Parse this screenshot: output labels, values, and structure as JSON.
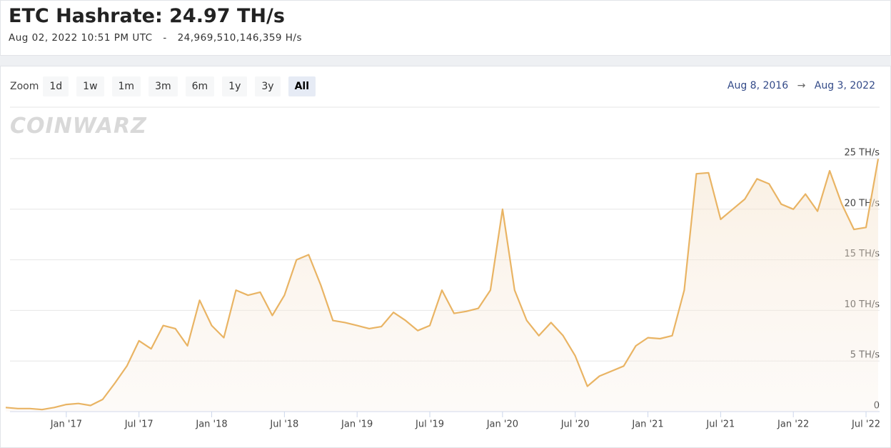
{
  "header": {
    "title": "ETC Hashrate: 24.97 TH/s",
    "timestamp": "Aug 02, 2022 10:51 PM UTC",
    "separator": "-",
    "hashrate": "24,969,510,146,359 H/s"
  },
  "toolbar": {
    "zoom_label": "Zoom",
    "zoom_buttons": [
      "1d",
      "1w",
      "1m",
      "3m",
      "6m",
      "1y",
      "3y",
      "All"
    ],
    "selected": "All",
    "range_start": "Aug 8, 2016",
    "range_arrow": "→",
    "range_end": "Aug 3, 2022"
  },
  "watermark": "COINWARZ",
  "chart_data": {
    "type": "area",
    "color": "#e9b464",
    "x": [
      "2016-08",
      "2016-09",
      "2016-10",
      "2016-11",
      "2016-12",
      "2017-01",
      "2017-02",
      "2017-03",
      "2017-04",
      "2017-05",
      "2017-06",
      "2017-07",
      "2017-08",
      "2017-09",
      "2017-10",
      "2017-11",
      "2017-12",
      "2018-01",
      "2018-02",
      "2018-03",
      "2018-04",
      "2018-05",
      "2018-06",
      "2018-07",
      "2018-08",
      "2018-09",
      "2018-10",
      "2018-11",
      "2018-12",
      "2019-01",
      "2019-02",
      "2019-03",
      "2019-04",
      "2019-05",
      "2019-06",
      "2019-07",
      "2019-08",
      "2019-09",
      "2019-10",
      "2019-11",
      "2019-12",
      "2020-01",
      "2020-02",
      "2020-03",
      "2020-04",
      "2020-05",
      "2020-06",
      "2020-07",
      "2020-08",
      "2020-09",
      "2020-10",
      "2020-11",
      "2020-12",
      "2021-01",
      "2021-02",
      "2021-03",
      "2021-04",
      "2021-05",
      "2021-06",
      "2021-07",
      "2021-08",
      "2021-09",
      "2021-10",
      "2021-11",
      "2021-12",
      "2022-01",
      "2022-02",
      "2022-03",
      "2022-04",
      "2022-05",
      "2022-06",
      "2022-07",
      "2022-08"
    ],
    "values": [
      0.4,
      0.3,
      0.3,
      0.2,
      0.4,
      0.7,
      0.8,
      0.6,
      1.2,
      2.8,
      4.5,
      7.0,
      6.2,
      8.5,
      8.2,
      6.5,
      11.0,
      8.5,
      7.3,
      12.0,
      11.5,
      11.8,
      9.5,
      11.5,
      15.0,
      15.5,
      12.5,
      9.0,
      8.8,
      8.5,
      8.2,
      8.4,
      9.8,
      9.0,
      8.0,
      8.5,
      12.0,
      9.7,
      9.9,
      10.2,
      12.0,
      20.0,
      12.0,
      9.0,
      7.5,
      8.8,
      7.5,
      5.5,
      2.5,
      3.5,
      4.0,
      4.5,
      6.5,
      7.3,
      7.2,
      7.5,
      12.0,
      23.5,
      23.6,
      19.0,
      20.0,
      21.0,
      23.0,
      22.5,
      20.5,
      20.0,
      21.5,
      19.8,
      23.8,
      20.5,
      18.0,
      18.2,
      24.97
    ],
    "xlim": [
      "2016-08",
      "2022-08"
    ],
    "xticks": [
      {
        "value": "2017-01",
        "label": "Jan '17"
      },
      {
        "value": "2017-07",
        "label": "Jul '17"
      },
      {
        "value": "2018-01",
        "label": "Jan '18"
      },
      {
        "value": "2018-07",
        "label": "Jul '18"
      },
      {
        "value": "2019-01",
        "label": "Jan '19"
      },
      {
        "value": "2019-07",
        "label": "Jul '19"
      },
      {
        "value": "2020-01",
        "label": "Jan '20"
      },
      {
        "value": "2020-07",
        "label": "Jul '20"
      },
      {
        "value": "2021-01",
        "label": "Jan '21"
      },
      {
        "value": "2021-07",
        "label": "Jul '21"
      },
      {
        "value": "2022-01",
        "label": "Jan '22"
      },
      {
        "value": "2022-07",
        "label": "Jul '22"
      }
    ],
    "ylim": [
      0,
      26
    ],
    "yticks": [
      0,
      {
        "value": 5,
        "label": "5 TH/s"
      },
      {
        "value": 10,
        "label": "10 TH/s"
      },
      {
        "value": 15,
        "label": "15 TH/s"
      },
      {
        "value": 20,
        "label": "20 TH/s"
      },
      {
        "value": 25,
        "label": "25 TH/s"
      }
    ],
    "grid": true
  }
}
